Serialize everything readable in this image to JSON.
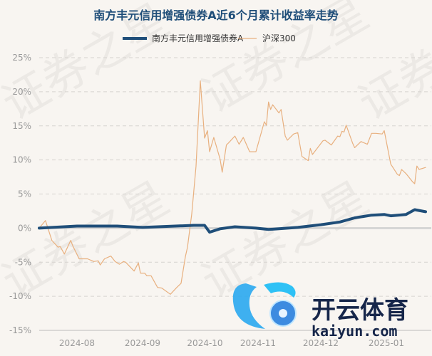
{
  "chart_data": {
    "type": "line",
    "title": "南方丰元信用增强债券A近6个月累计收益率走势",
    "xlabel": "",
    "ylabel": "",
    "ylim": [
      -15,
      25
    ],
    "yticks": [
      25,
      20,
      15,
      10,
      5,
      0,
      -5,
      -10,
      -15
    ],
    "ytick_labels": [
      "25%",
      "20%",
      "15%",
      "10%",
      "5%",
      "0%",
      "-5%",
      "-10%",
      "-15%"
    ],
    "xticks": [
      "2024-08",
      "2024-09",
      "2024-10",
      "2024-11",
      "2024-12",
      "2025-01"
    ],
    "grid": true,
    "legend": "top-center",
    "series": [
      {
        "name": "南方丰元信用增强债券A",
        "color": "#1f4e79",
        "points": [
          [
            "2024-07-14",
            0
          ],
          [
            "2024-08-01",
            0.3
          ],
          [
            "2024-08-20",
            0.3
          ],
          [
            "2024-09-01",
            0.1
          ],
          [
            "2024-09-25",
            0.4
          ],
          [
            "2024-09-30",
            0.4
          ],
          [
            "2024-10-09",
            -0.6
          ],
          [
            "2024-10-14",
            -0.1
          ],
          [
            "2024-10-21",
            0.2
          ],
          [
            "2024-10-31",
            0
          ],
          [
            "2024-11-06",
            -0.2
          ],
          [
            "2024-11-20",
            0.1
          ],
          [
            "2024-12-01",
            0.5
          ],
          [
            "2024-12-10",
            0.9
          ],
          [
            "2024-12-17",
            1.5
          ],
          [
            "2024-12-25",
            1.9
          ],
          [
            "2024-12-31",
            2.0
          ],
          [
            "2025-01-03",
            1.8
          ],
          [
            "2025-01-10",
            2.0
          ],
          [
            "2025-01-14",
            2.7
          ],
          [
            "2025-01-19",
            2.4
          ]
        ]
      },
      {
        "name": "沪深300",
        "color": "#e8b07f",
        "points": [
          [
            "2024-07-14",
            0
          ],
          [
            "2024-07-17",
            1.1
          ],
          [
            "2024-07-20",
            -1.8
          ],
          [
            "2024-07-23",
            -2.8
          ],
          [
            "2024-07-24",
            -2.7
          ],
          [
            "2024-07-26",
            -3.8
          ],
          [
            "2024-07-29",
            -1.8
          ],
          [
            "2024-07-30",
            -2.6
          ],
          [
            "2024-08-02",
            -4.5
          ],
          [
            "2024-08-06",
            -4.5
          ],
          [
            "2024-08-09",
            -4.9
          ],
          [
            "2024-08-11",
            -4.8
          ],
          [
            "2024-08-12",
            -5.4
          ],
          [
            "2024-08-14",
            -4.5
          ],
          [
            "2024-08-17",
            -4.1
          ],
          [
            "2024-08-19",
            -4.9
          ],
          [
            "2024-08-21",
            -5.3
          ],
          [
            "2024-08-23",
            -4.9
          ],
          [
            "2024-08-24",
            -5.0
          ],
          [
            "2024-08-28",
            -6.3
          ],
          [
            "2024-08-30",
            -5.1
          ],
          [
            "2024-08-31",
            -6.6
          ],
          [
            "2024-09-02",
            -6.6
          ],
          [
            "2024-09-03",
            -7.0
          ],
          [
            "2024-09-05",
            -7.0
          ],
          [
            "2024-09-08",
            -8.7
          ],
          [
            "2024-09-10",
            -8.8
          ],
          [
            "2024-09-14",
            -9.7
          ],
          [
            "2024-09-17",
            -8.7
          ],
          [
            "2024-09-19",
            -8.1
          ],
          [
            "2024-09-21",
            -4.2
          ],
          [
            "2024-09-22",
            -2.8
          ],
          [
            "2024-09-24",
            2.1
          ],
          [
            "2024-09-26",
            9.1
          ],
          [
            "2024-09-28",
            21.6
          ],
          [
            "2024-09-30",
            13.2
          ],
          [
            "2024-10-08",
            14.3
          ],
          [
            "2024-10-09",
            11.2
          ],
          [
            "2024-10-11",
            13.3
          ],
          [
            "2024-10-14",
            10.1
          ],
          [
            "2024-10-15",
            8.2
          ],
          [
            "2024-10-17",
            12.2
          ],
          [
            "2024-10-18",
            12.5
          ],
          [
            "2024-10-21",
            13.5
          ],
          [
            "2024-10-23",
            12.3
          ],
          [
            "2024-10-25",
            13.3
          ],
          [
            "2024-10-28",
            11.2
          ],
          [
            "2024-10-31",
            11.2
          ],
          [
            "2024-11-04",
            15.6
          ],
          [
            "2024-11-05",
            15.1
          ],
          [
            "2024-11-06",
            18.5
          ],
          [
            "2024-11-07",
            17.4
          ],
          [
            "2024-11-08",
            18.1
          ],
          [
            "2024-11-11",
            16.9
          ],
          [
            "2024-11-12",
            17.4
          ],
          [
            "2024-11-14",
            13.5
          ],
          [
            "2024-11-15",
            12.9
          ],
          [
            "2024-11-18",
            13.8
          ],
          [
            "2024-11-20",
            14.0
          ],
          [
            "2024-11-22",
            10.5
          ],
          [
            "2024-11-25",
            9.9
          ],
          [
            "2024-11-26",
            11.7
          ],
          [
            "2024-11-27",
            10.8
          ],
          [
            "2024-12-02",
            12.8
          ],
          [
            "2024-12-03",
            12.9
          ],
          [
            "2024-12-06",
            12.2
          ],
          [
            "2024-12-09",
            13.5
          ],
          [
            "2024-12-10",
            13.4
          ],
          [
            "2024-12-11",
            14.2
          ],
          [
            "2024-12-12",
            14.1
          ],
          [
            "2024-12-13",
            15.1
          ],
          [
            "2024-12-16",
            12.5
          ],
          [
            "2024-12-17",
            11.8
          ],
          [
            "2024-12-20",
            12.7
          ],
          [
            "2024-12-23",
            12.3
          ],
          [
            "2024-12-25",
            13.9
          ],
          [
            "2024-12-27",
            13.9
          ],
          [
            "2024-12-30",
            13.8
          ],
          [
            "2024-12-31",
            14.3
          ],
          [
            "2025-01-03",
            9.4
          ],
          [
            "2025-01-06",
            7.9
          ],
          [
            "2025-01-07",
            7.7
          ],
          [
            "2025-01-08",
            8.6
          ],
          [
            "2025-01-10",
            8.0
          ],
          [
            "2025-01-13",
            6.8
          ],
          [
            "2025-01-14",
            6.5
          ],
          [
            "2025-01-15",
            9.1
          ],
          [
            "2025-01-16",
            8.6
          ],
          [
            "2025-01-19",
            8.9
          ]
        ]
      }
    ]
  },
  "watermark": "证券之星",
  "logo": {
    "cn": "开云体育",
    "en": "kaiyun.com"
  }
}
